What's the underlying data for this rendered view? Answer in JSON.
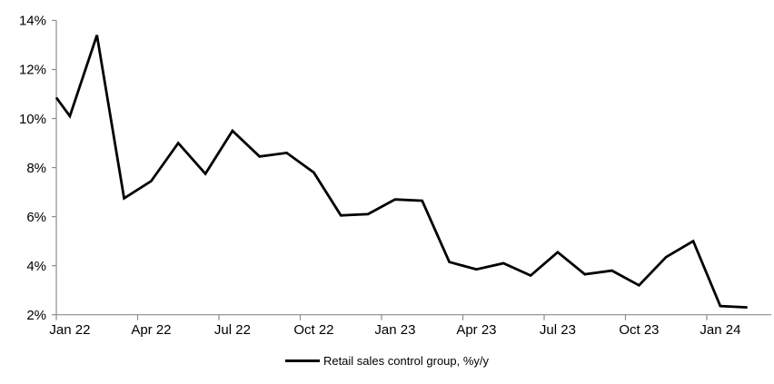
{
  "chart_data": {
    "type": "line",
    "title": "",
    "legend": "Retail sales control group, %y/y",
    "x": [
      "Jan 22",
      "Feb 22",
      "Mar 22",
      "Apr 22",
      "May 22",
      "Jun 22",
      "Jul 22",
      "Aug 22",
      "Sep 22",
      "Oct 22",
      "Nov 22",
      "Dec 22",
      "Jan 23",
      "Feb 23",
      "Mar 23",
      "Apr 23",
      "May 23",
      "Jun 23",
      "Jul 23",
      "Aug 23",
      "Sep 23",
      "Oct 23",
      "Nov 23",
      "Dec 23",
      "Jan 24",
      "Feb 24"
    ],
    "series": [
      {
        "name": "Retail sales control group, %y/y",
        "values": [
          10.1,
          13.4,
          6.75,
          7.45,
          9.0,
          7.75,
          9.5,
          8.45,
          8.6,
          7.8,
          6.05,
          6.1,
          6.7,
          6.65,
          4.15,
          3.85,
          4.1,
          3.6,
          4.55,
          3.65,
          3.8,
          3.2,
          4.35,
          5.0,
          2.35,
          2.3
        ]
      }
    ],
    "start_at_axis_value": 10.85,
    "ylim": [
      2,
      14
    ],
    "y_tick_labels": [
      "2%",
      "4%",
      "6%",
      "8%",
      "10%",
      "12%",
      "14%"
    ],
    "x_tick_labels": [
      "Jan 22",
      "Apr 22",
      "Jul 22",
      "Oct 22",
      "Jan 23",
      "Apr 23",
      "Jul 23",
      "Oct 23",
      "Jan 24"
    ],
    "x_tick_interval_months": 3,
    "grid": false,
    "legend_position": "bottom-center",
    "colors": {
      "line": "#000000",
      "axis": "#8c8c8c",
      "text": "#000000",
      "background": "#ffffff"
    }
  }
}
